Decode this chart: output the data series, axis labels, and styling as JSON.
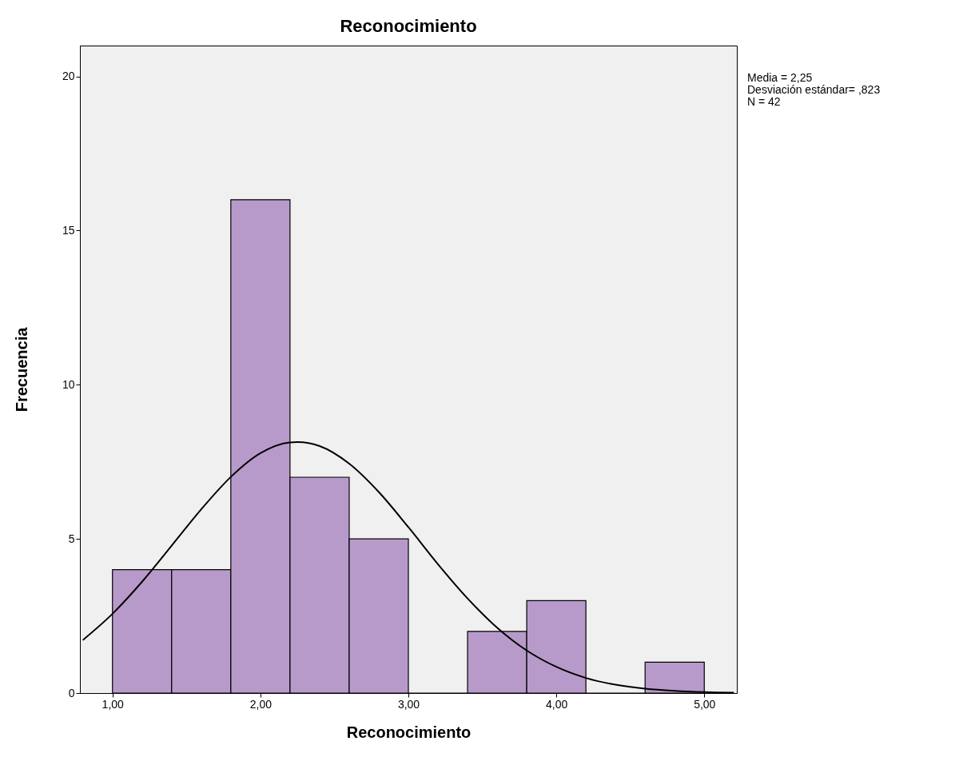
{
  "chart_data": {
    "type": "histogram",
    "title": "Reconocimiento",
    "xlabel": "Reconocimiento",
    "ylabel": "Frecuencia",
    "bins": [
      1.0,
      1.4,
      1.8,
      2.2,
      2.6,
      3.0,
      3.4,
      3.8,
      4.2,
      4.6,
      5.0
    ],
    "values": [
      4,
      4,
      16,
      7,
      5,
      0,
      2,
      3,
      0,
      1
    ],
    "color": "#b89aca",
    "series": [
      {
        "type": "line",
        "color": "#000000",
        "x": [
          0.8,
          1.0,
          1.2,
          1.4,
          1.6,
          1.8,
          2.0,
          2.2,
          2.25,
          2.4,
          2.6,
          2.8,
          3.0,
          3.2,
          3.4,
          3.6,
          3.8,
          4.0,
          4.2,
          4.4,
          4.6,
          4.8,
          5.0,
          5.2
        ],
        "values": [
          1.72,
          2.57,
          3.61,
          4.78,
          5.96,
          7.01,
          7.78,
          8.13,
          8.14,
          8.01,
          7.44,
          6.52,
          5.38,
          4.18,
          3.07,
          2.12,
          1.38,
          0.85,
          0.49,
          0.27,
          0.14,
          0.07,
          0.03,
          0.01
        ]
      }
    ],
    "xlim": [
      0.78,
      5.22
    ],
    "ylim": [
      0,
      21
    ],
    "xticks": [
      {
        "value": 1,
        "label": "1,00"
      },
      {
        "value": 2,
        "label": "2,00"
      },
      {
        "value": 3,
        "label": "3,00"
      },
      {
        "value": 4,
        "label": "4,00"
      },
      {
        "value": 5,
        "label": "5,00"
      }
    ],
    "yticks": [
      0,
      5,
      10,
      15,
      20
    ],
    "grid": false,
    "annotations": [
      "Media = 2,25",
      "Desviación estándar= ,823",
      "N = 42"
    ]
  }
}
